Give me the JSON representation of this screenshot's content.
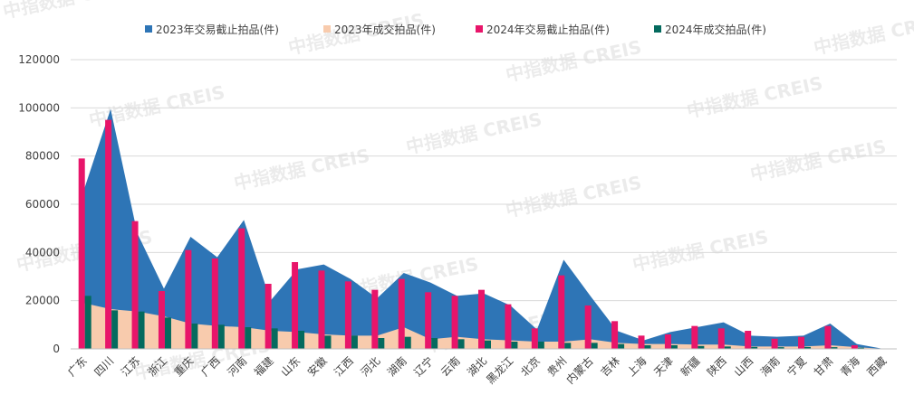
{
  "chart_data": {
    "type": "area",
    "categories": [
      "广东",
      "四川",
      "江苏",
      "浙江",
      "重庆",
      "广西",
      "河南",
      "福建",
      "山东",
      "安徽",
      "江西",
      "河北",
      "湖南",
      "辽宁",
      "云南",
      "湖北",
      "黑龙江",
      "北京",
      "贵州",
      "内蒙古",
      "吉林",
      "上海",
      "天津",
      "新疆",
      "陕西",
      "山西",
      "海南",
      "宁夏",
      "甘肃",
      "青海",
      "西藏"
    ],
    "series": [
      {
        "name": "2023年交易截止拍品(件)",
        "kind": "area",
        "color": "#2e75b6",
        "values": [
          66000,
          99500,
          48000,
          25000,
          46500,
          38000,
          53500,
          20000,
          33000,
          35000,
          29000,
          21000,
          31500,
          27500,
          22000,
          23000,
          18000,
          8000,
          37000,
          22000,
          7500,
          3500,
          7000,
          9000,
          11000,
          5500,
          5000,
          5500,
          10500,
          2000,
          0
        ]
      },
      {
        "name": "2023年成交拍品(件)",
        "kind": "area",
        "color": "#f8cbad",
        "values": [
          19000,
          16500,
          15500,
          13500,
          10500,
          9500,
          9000,
          7500,
          7000,
          6000,
          5500,
          5500,
          9000,
          4000,
          5000,
          4000,
          3500,
          3000,
          3000,
          4000,
          2500,
          2000,
          2000,
          1800,
          1800,
          1000,
          1000,
          1000,
          1500,
          700,
          0
        ]
      },
      {
        "name": "2024年交易截止拍品(件)",
        "kind": "bar",
        "color": "#e8156a",
        "values": [
          79000,
          95000,
          53000,
          24000,
          41000,
          37500,
          50000,
          27000,
          36000,
          32500,
          28000,
          24500,
          29000,
          23500,
          22000,
          24500,
          18500,
          8500,
          30500,
          18000,
          11500,
          5500,
          6000,
          9500,
          8500,
          7500,
          4200,
          5000,
          9500,
          1500,
          0
        ]
      },
      {
        "name": "2024年成交拍品(件)",
        "kind": "bar",
        "color": "#046a5e",
        "values": [
          22000,
          16000,
          15500,
          13000,
          10500,
          10000,
          9000,
          8500,
          7500,
          5500,
          5500,
          4500,
          5000,
          4500,
          4000,
          3500,
          3000,
          3000,
          2500,
          2500,
          2000,
          1500,
          1500,
          1200,
          1000,
          800,
          700,
          800,
          700,
          500,
          0
        ]
      }
    ],
    "ylim": [
      0,
      120000
    ],
    "yticks": [
      "0",
      "20000",
      "40000",
      "60000",
      "80000",
      "100000",
      "120000"
    ],
    "legend_position": "top",
    "grid": true,
    "watermark": "中指数据 CREIS"
  }
}
